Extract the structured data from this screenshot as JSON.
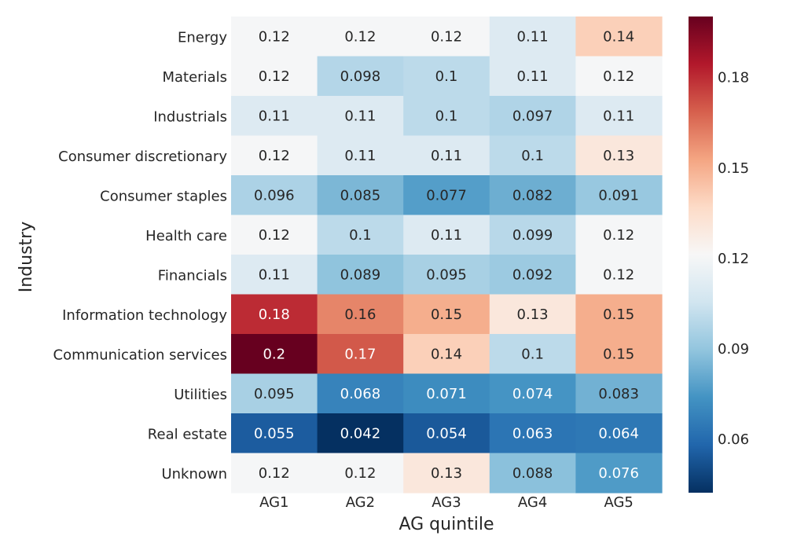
{
  "chart_data": {
    "type": "heatmap",
    "xlabel": "AG quintile",
    "ylabel": "Industry",
    "columns": [
      "AG1",
      "AG2",
      "AG3",
      "AG4",
      "AG5"
    ],
    "rows": [
      "Energy",
      "Materials",
      "Industrials",
      "Consumer discretionary",
      "Consumer staples",
      "Health care",
      "Financials",
      "Information technology",
      "Communication services",
      "Utilities",
      "Real estate",
      "Unknown"
    ],
    "values": [
      [
        0.12,
        0.12,
        0.12,
        0.11,
        0.14
      ],
      [
        0.12,
        0.098,
        0.1,
        0.11,
        0.12
      ],
      [
        0.11,
        0.11,
        0.1,
        0.097,
        0.11
      ],
      [
        0.12,
        0.11,
        0.11,
        0.1,
        0.13
      ],
      [
        0.096,
        0.085,
        0.077,
        0.082,
        0.091
      ],
      [
        0.12,
        0.1,
        0.11,
        0.099,
        0.12
      ],
      [
        0.11,
        0.089,
        0.095,
        0.092,
        0.12
      ],
      [
        0.18,
        0.16,
        0.15,
        0.13,
        0.15
      ],
      [
        0.2,
        0.17,
        0.14,
        0.1,
        0.15
      ],
      [
        0.095,
        0.068,
        0.071,
        0.074,
        0.083
      ],
      [
        0.055,
        0.042,
        0.054,
        0.063,
        0.064
      ],
      [
        0.12,
        0.12,
        0.13,
        0.088,
        0.076
      ]
    ],
    "labels": [
      [
        "0.12",
        "0.12",
        "0.12",
        "0.11",
        "0.14"
      ],
      [
        "0.12",
        "0.098",
        "0.1",
        "0.11",
        "0.12"
      ],
      [
        "0.11",
        "0.11",
        "0.1",
        "0.097",
        "0.11"
      ],
      [
        "0.12",
        "0.11",
        "0.11",
        "0.1",
        "0.13"
      ],
      [
        "0.096",
        "0.085",
        "0.077",
        "0.082",
        "0.091"
      ],
      [
        "0.12",
        "0.1",
        "0.11",
        "0.099",
        "0.12"
      ],
      [
        "0.11",
        "0.089",
        "0.095",
        "0.092",
        "0.12"
      ],
      [
        "0.18",
        "0.16",
        "0.15",
        "0.13",
        "0.15"
      ],
      [
        "0.2",
        "0.17",
        "0.14",
        "0.1",
        "0.15"
      ],
      [
        "0.095",
        "0.068",
        "0.071",
        "0.074",
        "0.083"
      ],
      [
        "0.055",
        "0.042",
        "0.054",
        "0.063",
        "0.064"
      ],
      [
        "0.12",
        "0.12",
        "0.13",
        "0.088",
        "0.076"
      ]
    ],
    "colormap": "RdBu_r",
    "vmin": 0.042,
    "vmax": 0.2,
    "colorbar": {
      "ticks": [
        0.06,
        0.09,
        0.12,
        0.15,
        0.18
      ],
      "tick_labels": [
        "0.06",
        "0.09",
        "0.12",
        "0.15",
        "0.18"
      ]
    },
    "colors": {
      "stops": [
        "#053061",
        "#2166ac",
        "#4393c3",
        "#92c5de",
        "#d1e5f0",
        "#f7f7f7",
        "#fddbc7",
        "#f4a582",
        "#d6604d",
        "#b2182b",
        "#67001f"
      ],
      "text_dark": "#262626",
      "text_light": "#ffffff"
    }
  }
}
